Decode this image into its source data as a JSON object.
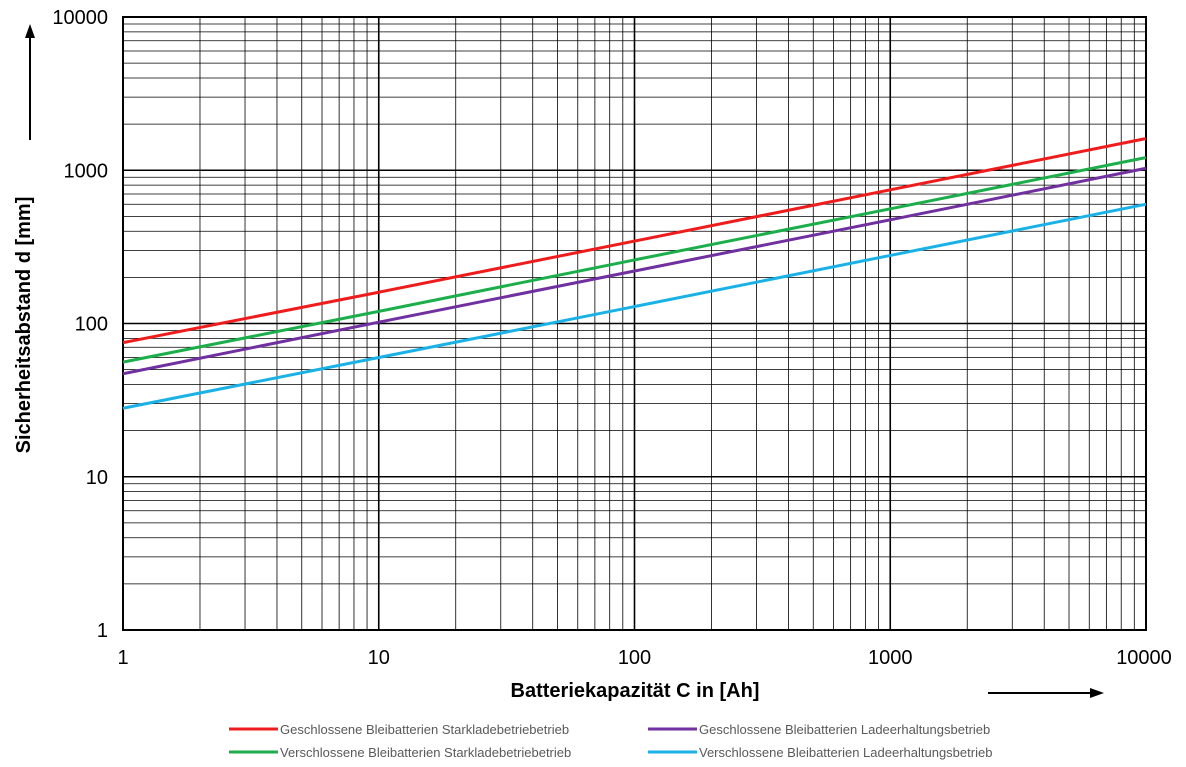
{
  "chart_data": {
    "type": "line",
    "title": "",
    "xlabel": "Batteriekapazität C in [Ah]",
    "ylabel": "Sicherheitsabstand d [mm]",
    "x_scale": "log",
    "y_scale": "log",
    "xlim": [
      1,
      10000
    ],
    "ylim": [
      1,
      10000
    ],
    "grid": true,
    "legend_position": "bottom",
    "x_ticks": [
      {
        "value": 1,
        "label": "1"
      },
      {
        "value": 10,
        "label": "10"
      },
      {
        "value": 100,
        "label": "100"
      },
      {
        "value": 1000,
        "label": "1000"
      },
      {
        "value": 10000,
        "label": "10000"
      }
    ],
    "y_ticks": [
      {
        "value": 1,
        "label": "1"
      },
      {
        "value": 10,
        "label": "10"
      },
      {
        "value": 100,
        "label": "100"
      },
      {
        "value": 1000,
        "label": "1000"
      },
      {
        "value": 10000,
        "label": "10000"
      }
    ],
    "series": [
      {
        "name": "Geschlossene Bleibatterien Starkladebetriebetrieb",
        "color": "#ee1c1c",
        "x": [
          1,
          10,
          100,
          1000,
          10000
        ],
        "y": [
          75,
          160,
          345,
          745,
          1610
        ]
      },
      {
        "name": "Geschlossene Bleibatterien Ladeerhaltungsbetrieb",
        "color": "#7030a0",
        "x": [
          1,
          10,
          100,
          1000,
          10000
        ],
        "y": [
          47,
          102,
          220,
          475,
          1030
        ]
      },
      {
        "name": "Verschlossene Bleibatterien Starkladebetriebetrieb",
        "color": "#1cae4a",
        "x": [
          1,
          10,
          100,
          1000,
          10000
        ],
        "y": [
          56,
          120,
          260,
          560,
          1210
        ]
      },
      {
        "name": "Verschlossene Bleibatterien Ladeerhaltungsbetrieb",
        "color": "#1ab2e6",
        "x": [
          1,
          10,
          100,
          1000,
          10000
        ],
        "y": [
          28,
          60,
          129,
          278,
          600
        ]
      }
    ]
  }
}
